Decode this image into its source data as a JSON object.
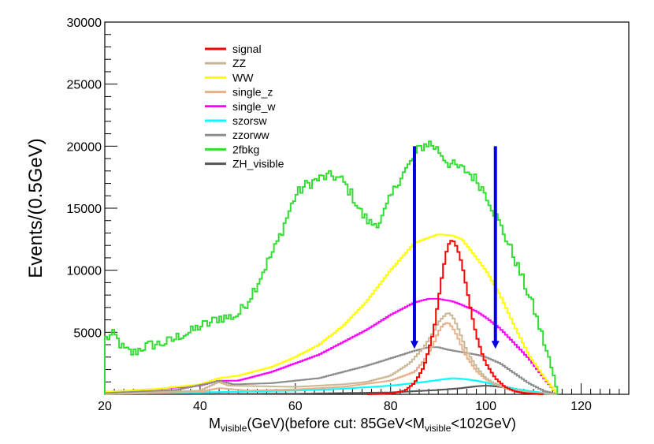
{
  "chart_data": {
    "type": "histogram-step",
    "title": "",
    "ylabel": "Events/(0.5GeV)",
    "xlabel": {
      "m": "M",
      "sub1": "visible",
      "mid": "(GeV)(before cut: 85GeV<M",
      "sub2": "visible",
      "end": "<102GeV)"
    },
    "xlim": [
      20,
      130
    ],
    "ylim": [
      0,
      30000
    ],
    "xticks": [
      20,
      40,
      60,
      80,
      100,
      120
    ],
    "yticks": [
      5000,
      10000,
      15000,
      20000,
      25000,
      30000
    ],
    "cut_arrows": [
      {
        "x": 85,
        "from": 20000,
        "to": 3800
      },
      {
        "x": 102,
        "from": 20000,
        "to": 3800
      }
    ],
    "arrow_color": "#0000dd",
    "legend": [
      {
        "name": "signal",
        "color": "#ff0000"
      },
      {
        "name": "ZZ",
        "color": "#c8b896"
      },
      {
        "name": "WW",
        "color": "#ffff00"
      },
      {
        "name": "single_z",
        "color": "#e8b08a"
      },
      {
        "name": "single_w",
        "color": "#ff00ff"
      },
      {
        "name": "szorsw",
        "color": "#00ffff"
      },
      {
        "name": "zzorww",
        "color": "#8c8c8c"
      },
      {
        "name": "2fbkg",
        "color": "#33dd33"
      },
      {
        "name": "ZH_visible",
        "color": "#555555"
      }
    ],
    "series": [
      {
        "name": "signal",
        "color": "#ff0000",
        "points": [
          [
            75,
            0
          ],
          [
            80,
            50
          ],
          [
            83,
            300
          ],
          [
            85,
            900
          ],
          [
            87,
            2200
          ],
          [
            89,
            5000
          ],
          [
            90,
            7500
          ],
          [
            91,
            10000
          ],
          [
            92,
            12000
          ],
          [
            93,
            12500
          ],
          [
            94,
            11800
          ],
          [
            95,
            10500
          ],
          [
            96,
            8500
          ],
          [
            97,
            6500
          ],
          [
            98,
            4800
          ],
          [
            99,
            3500
          ],
          [
            100,
            2500
          ],
          [
            102,
            1300
          ],
          [
            104,
            600
          ],
          [
            106,
            250
          ],
          [
            108,
            100
          ],
          [
            112,
            0
          ]
        ]
      },
      {
        "name": "ZZ",
        "color": "#c8b896",
        "points": [
          [
            20,
            0
          ],
          [
            40,
            300
          ],
          [
            44,
            1000
          ],
          [
            46,
            700
          ],
          [
            60,
            600
          ],
          [
            70,
            800
          ],
          [
            75,
            1000
          ],
          [
            80,
            1500
          ],
          [
            84,
            2500
          ],
          [
            87,
            3800
          ],
          [
            89,
            5000
          ],
          [
            90,
            5800
          ],
          [
            91,
            6200
          ],
          [
            92,
            6600
          ],
          [
            93,
            6300
          ],
          [
            94,
            5500
          ],
          [
            95,
            4500
          ],
          [
            96,
            3500
          ],
          [
            98,
            2200
          ],
          [
            100,
            1300
          ],
          [
            102,
            800
          ],
          [
            105,
            400
          ],
          [
            110,
            100
          ],
          [
            115,
            0
          ]
        ]
      },
      {
        "name": "WW",
        "color": "#ffff00",
        "points": [
          [
            20,
            200
          ],
          [
            30,
            400
          ],
          [
            40,
            800
          ],
          [
            44,
            1300
          ],
          [
            48,
            1500
          ],
          [
            55,
            2200
          ],
          [
            60,
            3000
          ],
          [
            65,
            4000
          ],
          [
            70,
            5500
          ],
          [
            75,
            7500
          ],
          [
            80,
            10000
          ],
          [
            85,
            12200
          ],
          [
            90,
            12900
          ],
          [
            93,
            12800
          ],
          [
            95,
            12500
          ],
          [
            97,
            11500
          ],
          [
            100,
            10000
          ],
          [
            103,
            8000
          ],
          [
            106,
            5500
          ],
          [
            109,
            3200
          ],
          [
            112,
            1500
          ],
          [
            114,
            500
          ],
          [
            115,
            0
          ]
        ]
      },
      {
        "name": "single_z",
        "color": "#e8b08a",
        "points": [
          [
            20,
            0
          ],
          [
            40,
            200
          ],
          [
            44,
            500
          ],
          [
            50,
            300
          ],
          [
            60,
            400
          ],
          [
            70,
            600
          ],
          [
            80,
            1100
          ],
          [
            85,
            1800
          ],
          [
            87,
            2700
          ],
          [
            89,
            4000
          ],
          [
            90,
            5000
          ],
          [
            91,
            5600
          ],
          [
            92,
            5800
          ],
          [
            93,
            5400
          ],
          [
            94,
            4700
          ],
          [
            95,
            3800
          ],
          [
            96,
            3000
          ],
          [
            98,
            1900
          ],
          [
            100,
            1200
          ],
          [
            103,
            700
          ],
          [
            106,
            300
          ],
          [
            112,
            0
          ]
        ]
      },
      {
        "name": "single_w",
        "color": "#ff00ff",
        "points": [
          [
            20,
            200
          ],
          [
            30,
            400
          ],
          [
            40,
            700
          ],
          [
            44,
            1100
          ],
          [
            48,
            1100
          ],
          [
            55,
            1800
          ],
          [
            60,
            2500
          ],
          [
            65,
            3200
          ],
          [
            70,
            4200
          ],
          [
            75,
            5200
          ],
          [
            80,
            6400
          ],
          [
            85,
            7400
          ],
          [
            88,
            7700
          ],
          [
            90,
            7700
          ],
          [
            93,
            7500
          ],
          [
            95,
            7200
          ],
          [
            98,
            6700
          ],
          [
            100,
            6200
          ],
          [
            103,
            5300
          ],
          [
            106,
            4100
          ],
          [
            109,
            2900
          ],
          [
            112,
            1400
          ],
          [
            115,
            0
          ]
        ]
      },
      {
        "name": "szorsw",
        "color": "#00ffff",
        "points": [
          [
            20,
            50
          ],
          [
            40,
            150
          ],
          [
            60,
            300
          ],
          [
            70,
            450
          ],
          [
            80,
            700
          ],
          [
            85,
            900
          ],
          [
            90,
            1150
          ],
          [
            93,
            1300
          ],
          [
            95,
            1250
          ],
          [
            98,
            1100
          ],
          [
            100,
            950
          ],
          [
            103,
            700
          ],
          [
            106,
            450
          ],
          [
            110,
            200
          ],
          [
            115,
            0
          ]
        ]
      },
      {
        "name": "zzorww",
        "color": "#8c8c8c",
        "points": [
          [
            20,
            100
          ],
          [
            35,
            350
          ],
          [
            42,
            900
          ],
          [
            44,
            1100
          ],
          [
            47,
            800
          ],
          [
            55,
            900
          ],
          [
            65,
            1300
          ],
          [
            75,
            2300
          ],
          [
            80,
            2900
          ],
          [
            85,
            3500
          ],
          [
            88,
            3800
          ],
          [
            90,
            3800
          ],
          [
            92,
            3600
          ],
          [
            95,
            3400
          ],
          [
            98,
            3200
          ],
          [
            100,
            3000
          ],
          [
            103,
            2500
          ],
          [
            106,
            1700
          ],
          [
            109,
            900
          ],
          [
            112,
            300
          ],
          [
            115,
            0
          ]
        ]
      },
      {
        "name": "2fbkg",
        "color": "#33dd33",
        "points": [
          [
            20,
            0
          ],
          [
            20.2,
            4500
          ],
          [
            22,
            4800
          ],
          [
            24,
            3600
          ],
          [
            26,
            3300
          ],
          [
            28,
            3800
          ],
          [
            30,
            4000
          ],
          [
            32,
            4100
          ],
          [
            34,
            4300
          ],
          [
            36,
            4800
          ],
          [
            38,
            5000
          ],
          [
            40,
            5500
          ],
          [
            42,
            5700
          ],
          [
            44,
            6200
          ],
          [
            46,
            6200
          ],
          [
            48,
            6400
          ],
          [
            50,
            7500
          ],
          [
            52,
            8900
          ],
          [
            54,
            10500
          ],
          [
            56,
            12000
          ],
          [
            58,
            14000
          ],
          [
            60,
            16000
          ],
          [
            62,
            16800
          ],
          [
            64,
            17200
          ],
          [
            66,
            17500
          ],
          [
            68,
            17600
          ],
          [
            70,
            17200
          ],
          [
            72,
            16000
          ],
          [
            74,
            14500
          ],
          [
            76,
            13700
          ],
          [
            78,
            14000
          ],
          [
            80,
            15800
          ],
          [
            82,
            17500
          ],
          [
            84,
            18500
          ],
          [
            86,
            19800
          ],
          [
            88,
            20300
          ],
          [
            90,
            19700
          ],
          [
            92,
            18700
          ],
          [
            94,
            18300
          ],
          [
            96,
            18000
          ],
          [
            98,
            17300
          ],
          [
            100,
            16200
          ],
          [
            102,
            14500
          ],
          [
            104,
            12800
          ],
          [
            106,
            11000
          ],
          [
            108,
            9000
          ],
          [
            110,
            7000
          ],
          [
            112,
            4500
          ],
          [
            114,
            1800
          ],
          [
            115,
            0
          ]
        ]
      },
      {
        "name": "ZH_visible",
        "color": "#555555",
        "points": [
          [
            20,
            0
          ],
          [
            60,
            50
          ],
          [
            80,
            150
          ],
          [
            90,
            350
          ],
          [
            95,
            500
          ],
          [
            98,
            650
          ],
          [
            100,
            700
          ],
          [
            102,
            650
          ],
          [
            105,
            500
          ],
          [
            108,
            300
          ],
          [
            112,
            100
          ],
          [
            115,
            0
          ]
        ]
      }
    ]
  }
}
